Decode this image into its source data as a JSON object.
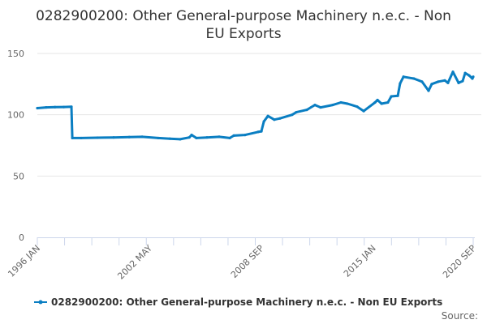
{
  "chart_data": {
    "type": "line",
    "title_lines": [
      "0282900200: Other General-purpose Machinery n.e.c. - Non",
      "EU Exports"
    ],
    "xlabel": "",
    "ylabel": "",
    "ylim": [
      0,
      150
    ],
    "xlim": [
      1996.0,
      2020.667
    ],
    "yticks": [
      0,
      50,
      100,
      150
    ],
    "xtick_labels": [
      {
        "label": "1996 JAN",
        "x": 1996.0
      },
      {
        "label": "2002 MAY",
        "x": 2002.333
      },
      {
        "label": "2008 SEP",
        "x": 2008.667
      },
      {
        "label": "2015 JAN",
        "x": 2015.0
      },
      {
        "label": "2020 SEP",
        "x": 2020.667
      }
    ],
    "grid": true,
    "legend_position": "bottom",
    "color": "#0a7ec2",
    "series": [
      {
        "name": "0282900200: Other General-purpose Machinery n.e.c. - Non EU Exports",
        "x": [
          1996.0,
          1996.5,
          1997.0,
          1997.5,
          1997.93,
          1997.98,
          1998.48,
          1999.4,
          2000.32,
          2001.2,
          2001.93,
          2002.84,
          2003.5,
          2004.08,
          2004.6,
          2004.73,
          2005.0,
          2005.6,
          2006.29,
          2006.89,
          2007.12,
          2007.76,
          2008.49,
          2008.68,
          2008.82,
          2009.05,
          2009.41,
          2009.73,
          2010.42,
          2010.65,
          2011.25,
          2011.71,
          2012.03,
          2012.72,
          2013.18,
          2013.55,
          2014.1,
          2014.47,
          2015.11,
          2015.25,
          2015.48,
          2015.84,
          2016.03,
          2016.4,
          2016.53,
          2016.72,
          2017.31,
          2017.77,
          2018.14,
          2018.32,
          2018.69,
          2019.06,
          2019.24,
          2019.52,
          2019.84,
          2020.07,
          2020.21,
          2020.44,
          2020.62,
          2020.667
        ],
        "values": [
          105.4,
          106,
          106.2,
          106.3,
          106.5,
          81,
          81,
          81.3,
          81.5,
          81.8,
          82,
          81,
          80.5,
          80,
          81.5,
          83.5,
          81,
          81.5,
          82,
          81,
          83,
          83.5,
          86,
          86.5,
          94.5,
          99,
          96,
          97,
          100,
          102,
          104,
          108,
          106,
          108,
          110,
          109,
          106.6,
          103,
          110,
          112,
          109,
          110,
          115,
          115.5,
          125.5,
          131,
          129.5,
          127,
          119.6,
          125,
          127,
          128,
          126,
          135,
          126,
          127.5,
          134,
          132,
          129.5,
          131
        ]
      }
    ]
  },
  "legend": {
    "label": "0282900200: Other General-purpose Machinery n.e.c. - Non EU Exports"
  },
  "source_label": "Source:"
}
